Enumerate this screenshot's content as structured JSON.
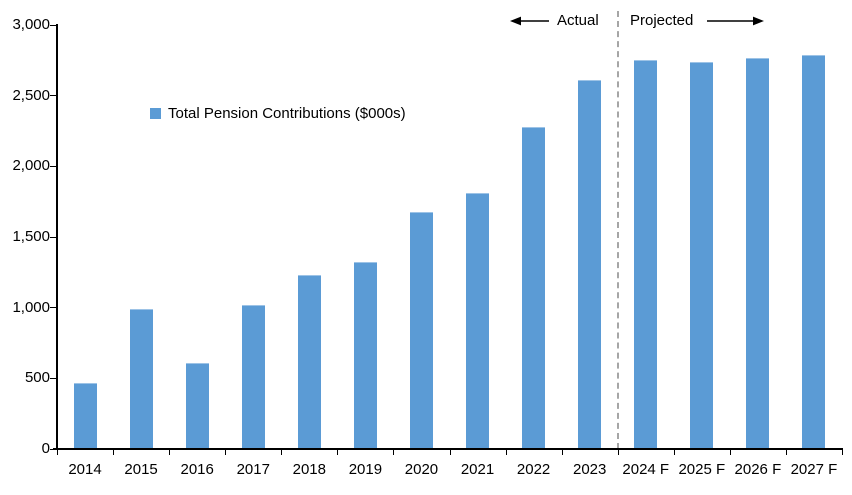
{
  "chart_data": {
    "type": "bar",
    "title": "",
    "legend": "Total Pension Contributions ($000s)",
    "categories": [
      "2014",
      "2015",
      "2016",
      "2017",
      "2018",
      "2019",
      "2020",
      "2021",
      "2022",
      "2023",
      "2024 F",
      "2025 F",
      "2026 F",
      "2027 F"
    ],
    "values": [
      470,
      990,
      610,
      1020,
      1230,
      1320,
      1680,
      1810,
      2280,
      2610,
      2750,
      2740,
      2770,
      2790
    ],
    "ylim": [
      0,
      3000
    ],
    "ytick_step": 500,
    "ytick_labels": [
      "0",
      "500",
      "1,000",
      "1,500",
      "2,000",
      "2,500",
      "3,000"
    ],
    "annotations": {
      "left": "Actual",
      "right": "Projected"
    },
    "divider_after_index": 9,
    "bar_color": "#5B9BD5",
    "divider_color": "#A6A6A6",
    "axis_color": "#000000",
    "legend_position": "inside-upper-left",
    "grid": false
  }
}
